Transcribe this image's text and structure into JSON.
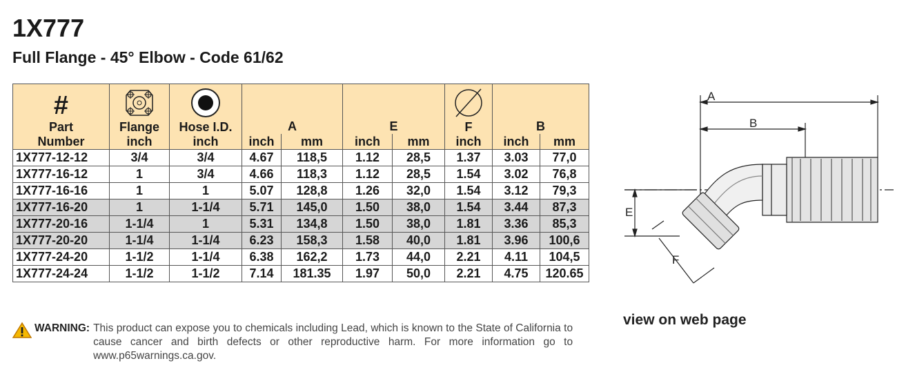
{
  "header": {
    "title": "1X777",
    "subtitle": "Full Flange - 45° Elbow - Code 61/62"
  },
  "table": {
    "headers": [
      {
        "symbol": "#",
        "name": "Part Number"
      },
      {
        "name": "Flange",
        "unit": "inch"
      },
      {
        "name": "Hose I.D.",
        "unit": "inch"
      },
      {
        "name": "A",
        "units": [
          "inch",
          "mm"
        ]
      },
      {
        "name": "E",
        "units": [
          "inch",
          "mm"
        ]
      },
      {
        "name": "F",
        "unit": "inch"
      },
      {
        "name": "B",
        "units": [
          "inch",
          "mm"
        ]
      }
    ],
    "rows": [
      [
        "1X777-12-12",
        "3/4",
        "3/4",
        "4.67",
        "118,5",
        "1.12",
        "28,5",
        "1.37",
        "3.03",
        "77,0"
      ],
      [
        "1X777-16-12",
        "1",
        "3/4",
        "4.66",
        "118,3",
        "1.12",
        "28,5",
        "1.54",
        "3.02",
        "76,8"
      ],
      [
        "1X777-16-16",
        "1",
        "1",
        "5.07",
        "128,8",
        "1.26",
        "32,0",
        "1.54",
        "3.12",
        "79,3"
      ],
      [
        "1X777-16-20",
        "1",
        "1-1/4",
        "5.71",
        "145,0",
        "1.50",
        "38,0",
        "1.54",
        "3.44",
        "87,3"
      ],
      [
        "1X777-20-16",
        "1-1/4",
        "1",
        "5.31",
        "134,8",
        "1.50",
        "38,0",
        "1.81",
        "3.36",
        "85,3"
      ],
      [
        "1X777-20-20",
        "1-1/4",
        "1-1/4",
        "6.23",
        "158,3",
        "1.58",
        "40,0",
        "1.81",
        "3.96",
        "100,6"
      ],
      [
        "1X777-24-20",
        "1-1/2",
        "1-1/4",
        "6.38",
        "162,2",
        "1.73",
        "44,0",
        "2.21",
        "4.11",
        "104,5"
      ],
      [
        "1X777-24-24",
        "1-1/2",
        "1-1/2",
        "7.14",
        "181.35",
        "1.97",
        "50,0",
        "2.21",
        "4.75",
        "120.65"
      ]
    ],
    "shaded_rows": [
      3,
      4,
      5
    ]
  },
  "warning": {
    "label": "WARNING:",
    "text": "This product can expose you to chemicals including Lead, which is known to the State of California to cause cancer and birth defects or other reproductive harm.  For more information go to www.p65warnings.ca.gov."
  },
  "link": "view on web page",
  "diagram": {
    "labels": [
      "A",
      "B",
      "E",
      "F"
    ]
  }
}
